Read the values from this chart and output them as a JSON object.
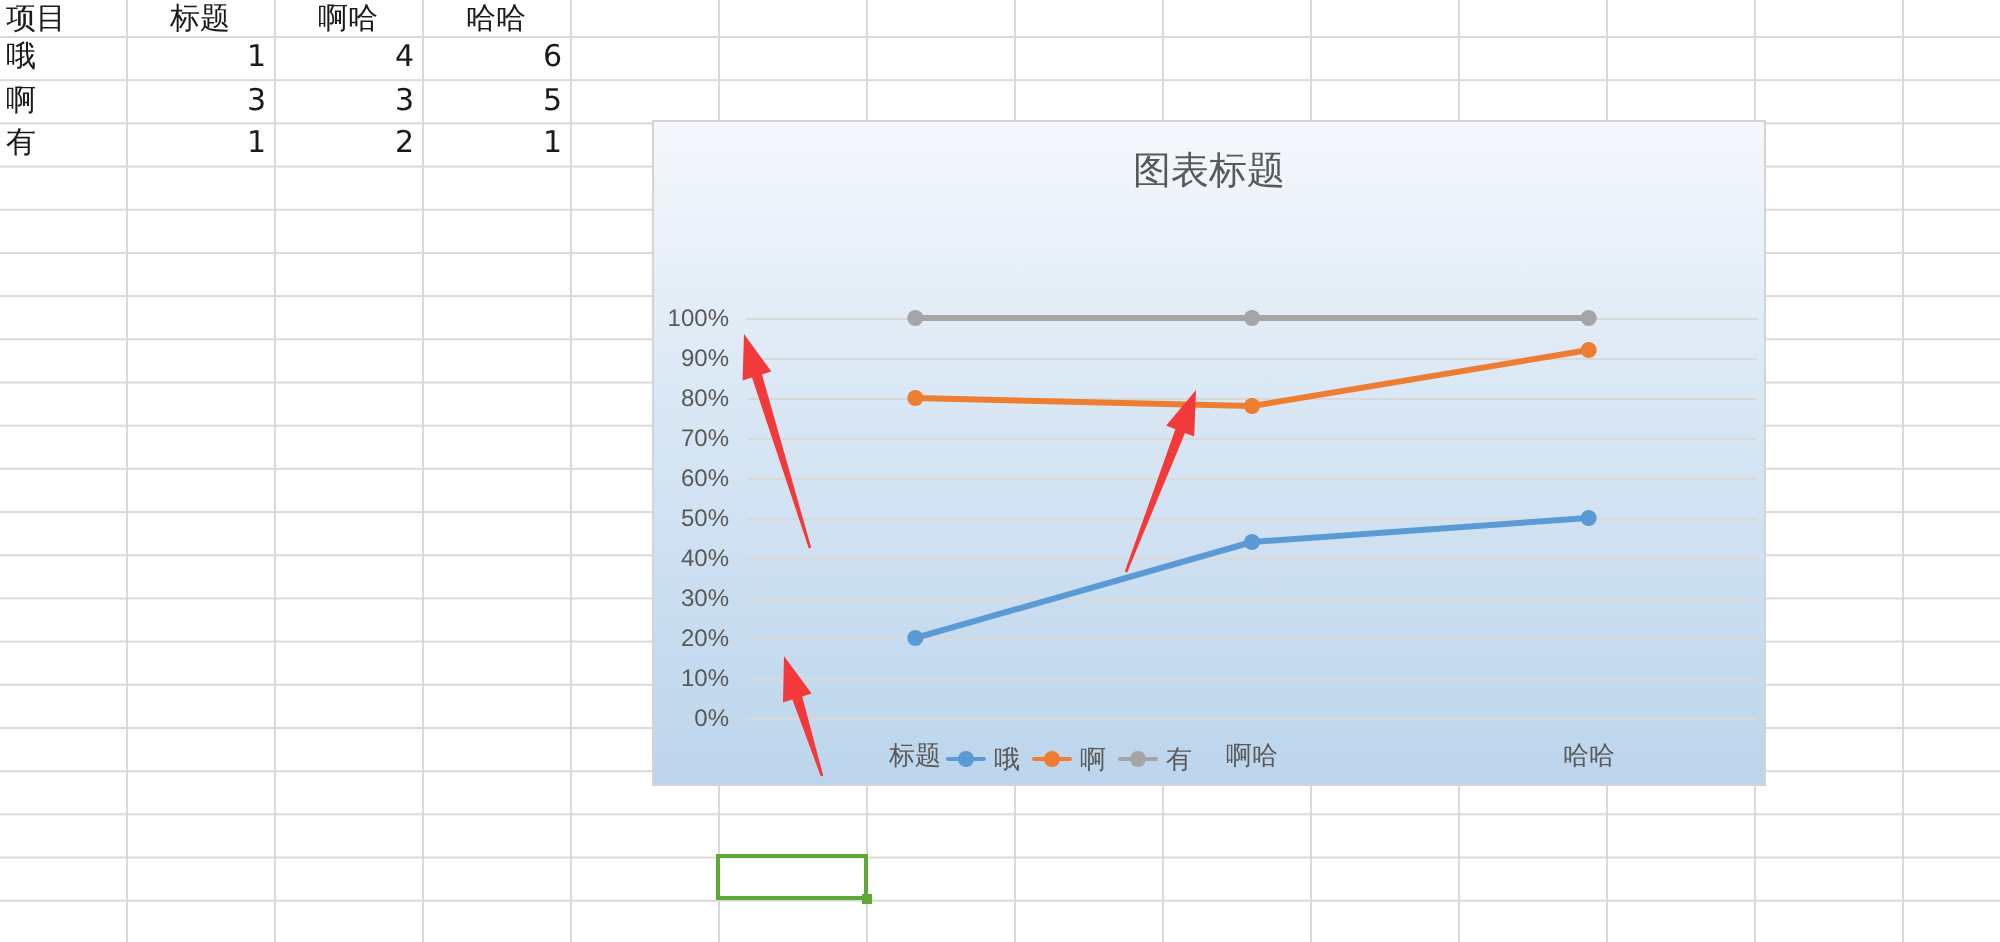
{
  "chart_data": [
    {
      "type": "other",
      "annotations": [
        "项目"
      ],
      "categories": [
        "标题",
        "啊哈",
        "哈哈"
      ],
      "series": [
        {
          "name": "哦",
          "values": [
            1,
            4,
            6
          ]
        },
        {
          "name": "啊",
          "values": [
            3,
            3,
            5
          ]
        },
        {
          "name": "有",
          "values": [
            1,
            2,
            1
          ]
        }
      ],
      "data_labels": true
    },
    {
      "type": "line",
      "title": "图表标题",
      "categories": [
        "标题",
        "啊哈",
        "哈哈"
      ],
      "series": [
        {
          "name": "哦",
          "color": "#5b9bd5",
          "values": [
            20,
            44,
            50
          ]
        },
        {
          "name": "啊",
          "color": "#ed7d31",
          "values": [
            80,
            78,
            92
          ]
        },
        {
          "name": "有",
          "color": "#a5a5a5",
          "values": [
            100,
            100,
            100
          ]
        }
      ],
      "ylim": [
        0,
        100
      ],
      "yticks": [
        {
          "value": 0,
          "label": "0%"
        },
        {
          "value": 10,
          "label": "10%"
        },
        {
          "value": 20,
          "label": "20%"
        },
        {
          "value": 30,
          "label": "30%"
        },
        {
          "value": 40,
          "label": "40%"
        },
        {
          "value": 50,
          "label": "50%"
        },
        {
          "value": 60,
          "label": "60%"
        },
        {
          "value": 70,
          "label": "70%"
        },
        {
          "value": 80,
          "label": "80%"
        },
        {
          "value": 90,
          "label": "90%"
        },
        {
          "value": 100,
          "label": "100%"
        }
      ],
      "grid": "y",
      "legend": "bottom",
      "marker": "circle",
      "line_style": "solid"
    }
  ]
}
